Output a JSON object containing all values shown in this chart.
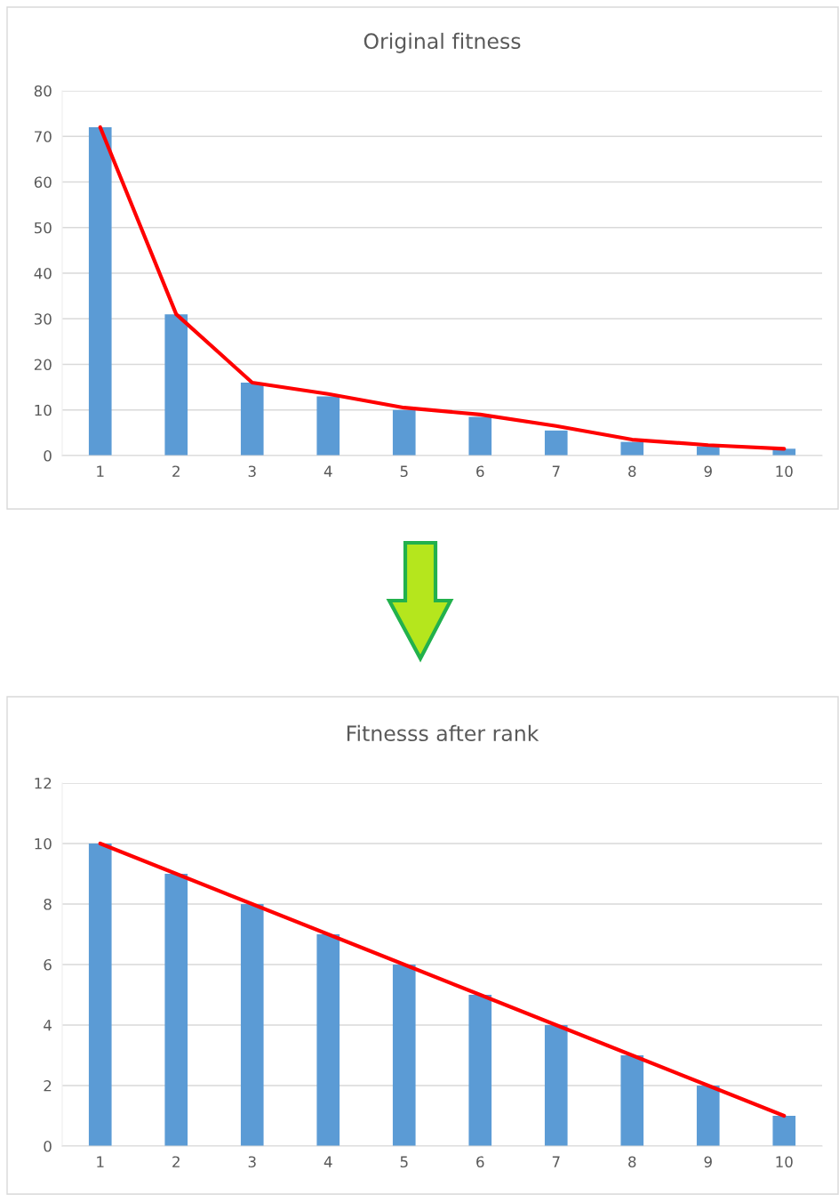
{
  "chart_data": [
    {
      "type": "bar",
      "title": "Original fitness",
      "categories": [
        "1",
        "2",
        "3",
        "4",
        "5",
        "6",
        "7",
        "8",
        "9",
        "10"
      ],
      "series": [
        {
          "color": "#5b9bd5",
          "values": [
            72,
            31,
            16,
            13,
            10,
            8.5,
            5.5,
            3,
            2,
            1.5
          ]
        },
        {
          "type": "line",
          "color": "#ff0000",
          "values": [
            72,
            31,
            16,
            13.5,
            10.5,
            9,
            6.5,
            3.5,
            2.3,
            1.5
          ]
        }
      ],
      "ylim": [
        0,
        80
      ],
      "yticks": [
        0,
        10,
        20,
        30,
        40,
        50,
        60,
        70,
        80
      ],
      "grid": "y"
    },
    {
      "type": "bar",
      "title": "Fitnesss after rank",
      "categories": [
        "1",
        "2",
        "3",
        "4",
        "5",
        "6",
        "7",
        "8",
        "9",
        "10"
      ],
      "series": [
        {
          "color": "#5b9bd5",
          "values": [
            10,
            9,
            8,
            7,
            6,
            5,
            4,
            3,
            2,
            1
          ]
        },
        {
          "type": "line",
          "color": "#ff0000",
          "values": [
            10,
            9,
            8,
            7,
            6,
            5,
            4,
            3,
            2,
            1
          ]
        }
      ],
      "ylim": [
        0,
        12
      ],
      "yticks": [
        0,
        2,
        4,
        6,
        8,
        10,
        12
      ],
      "grid": "y"
    }
  ]
}
